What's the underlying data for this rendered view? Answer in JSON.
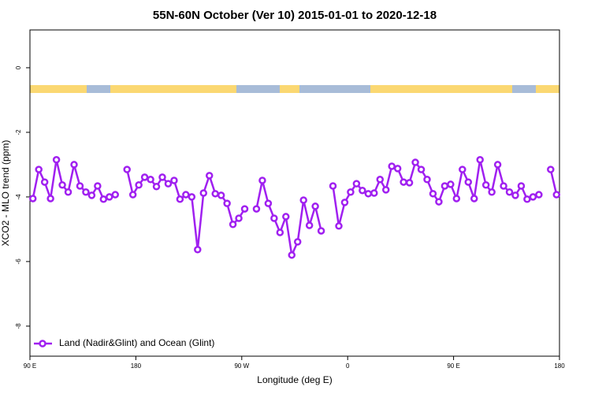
{
  "chart_data": {
    "type": "line",
    "title": "55N-60N October (Ver 10)   2015-01-01 to 2020-12-18",
    "x_label": "Longitude (deg E)",
    "y_label": "XCO2 - MLO trend (ppm)",
    "x": [
      92.5,
      97.5,
      102.5,
      107.5,
      112.5,
      117.5,
      122.5,
      127.5,
      132.5,
      137.5,
      142.5,
      147.5,
      152.5,
      157.5,
      162.5,
      167.5,
      172.5,
      177.5,
      182.5,
      187.5,
      192.5,
      197.5,
      202.5,
      207.5,
      212.5,
      217.5,
      222.5,
      227.5,
      232.5,
      237.5,
      242.5,
      247.5,
      252.5,
      257.5,
      262.5,
      267.5,
      272.5,
      277.5,
      282.5,
      287.5,
      292.5,
      297.5,
      302.5,
      307.5,
      312.5,
      317.5,
      322.5,
      327.5,
      332.5,
      337.5,
      342.5,
      347.5,
      352.5,
      357.5,
      362.5,
      367.5,
      372.5,
      377.5,
      382.5,
      387.5,
      392.5,
      397.5,
      402.5,
      407.5,
      412.5,
      417.5,
      422.5,
      427.5,
      432.5,
      437.5,
      442.5,
      447.5,
      452.5,
      457.5,
      462.5,
      467.5,
      472.5,
      477.5,
      482.5,
      487.5,
      492.5,
      497.5,
      502.5,
      507.5,
      512.5,
      517.5,
      522.5,
      527.5,
      532.5,
      537.5
    ],
    "series": [
      {
        "name": "Land (Nadir&Glint) and Ocean (Glint)",
        "color": "#a020f0",
        "values": [
          -4.05,
          -3.15,
          -3.54,
          -4.05,
          -2.85,
          -3.63,
          -3.85,
          -3.0,
          -3.66,
          -3.85,
          -3.95,
          -3.66,
          -4.07,
          -4.0,
          -3.93,
          null,
          -3.15,
          -3.93,
          -3.63,
          -3.39,
          -3.46,
          -3.68,
          -3.39,
          -3.59,
          -3.49,
          -4.07,
          -3.93,
          -4.0,
          -5.63,
          -3.88,
          -3.34,
          -3.9,
          -3.95,
          -4.2,
          -4.85,
          -4.66,
          -4.37,
          null,
          -4.37,
          -3.49,
          -4.2,
          -4.66,
          -5.1,
          -4.61,
          -5.8,
          -5.39,
          -4.1,
          -4.88,
          -4.29,
          -5.05,
          null,
          -3.66,
          -4.9,
          -4.17,
          -3.85,
          -3.59,
          -3.8,
          -3.9,
          -3.88,
          -3.46,
          -3.78,
          -3.05,
          -3.12,
          -3.54,
          -3.56,
          -2.93,
          -3.15,
          -3.46,
          -3.9,
          -4.15,
          -3.66,
          -3.61,
          -4.05,
          -3.15,
          -3.54,
          -4.05,
          -2.85,
          -3.63,
          -3.85,
          -3.0,
          -3.66,
          -3.85,
          -3.95,
          -3.66,
          -4.07,
          -4.0,
          -3.93,
          null,
          -3.15,
          -3.93
        ]
      }
    ],
    "xlim": [
      90,
      540
    ],
    "xticks": [
      {
        "value": 90,
        "label": "90 E"
      },
      180,
      {
        "value": 270,
        "label": "90 W"
      },
      {
        "value": 360,
        "label": "0"
      },
      {
        "value": 450,
        "label": "90 E"
      },
      {
        "value": 540,
        "label": "180"
      }
    ],
    "ylim": [
      -8.93,
      1.17
    ],
    "yticks": [
      0,
      -2,
      -4,
      -6,
      -8
    ],
    "legend": "bottom-left"
  }
}
